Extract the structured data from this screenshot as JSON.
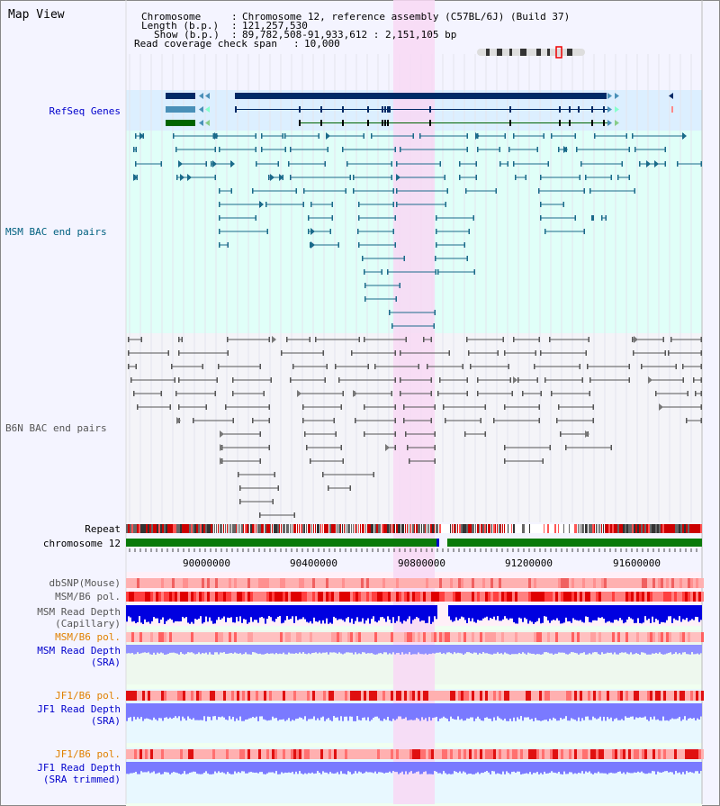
{
  "title": "Map View",
  "info": {
    "chromosome_key": "Chromosome",
    "chromosome_val": "Chromosome 12, reference assembly (C57BL/6J) (Build 37)",
    "length_key": "Length (b.p.)",
    "length_val": "121,257,530",
    "show_key": "Show (b.p.)",
    "show_val": "89,782,508-91,933,612 : 2,151,105 bp",
    "coverage_key": "Read coverage check span",
    "coverage_val": "10,000"
  },
  "tracks": {
    "refseq": "RefSeq Genes",
    "msm_bac": "MSM BAC end pairs",
    "b6n_bac": "B6N BAC end pairs",
    "repeat": "Repeat",
    "chromosome": "chromosome 12",
    "dbsnp": "dbSNP(Mouse)",
    "msm_pol": "MSM/B6 pol.",
    "msm_depth_1": "MSM Read Depth",
    "msm_depth_2": "(Capillary)",
    "msm_pol2": "MSM/B6 pol.",
    "msm_sra_1": "MSM Read Depth",
    "msm_sra_2": "(SRA)",
    "jf1_pol": "JF1/B6 pol.",
    "jf1_sra_1": "JF1 Read Depth",
    "jf1_sra_2": "(SRA)",
    "jf1_pol2": "JF1/B6 pol.",
    "jf1_trim_1": "JF1 Read Depth",
    "jf1_trim_2": "(SRA trimmed)"
  },
  "axis_ticks": [
    "90000000",
    "90400000",
    "90800000",
    "91200000",
    "91600000"
  ],
  "colors": {
    "highlight": "#f8d8f4",
    "refseq_bg": "#dcefff",
    "msm_bg": "#e0fff8",
    "b6n_bg": "#f4f4f8",
    "gene_dark": "#002a66",
    "gene_mid": "#4a90b8",
    "gene_green": "#006400",
    "msm_line": "#1a6a8a",
    "b6n_line": "#555555",
    "chrom_green": "#0a7a0a",
    "depth_blue": "#0000e0",
    "sra_blue": "#7a7aff",
    "pol_red": "#e03030",
    "label_blue": "#0000cc",
    "label_orange": "#e08000",
    "label_teal": "#006080"
  }
}
